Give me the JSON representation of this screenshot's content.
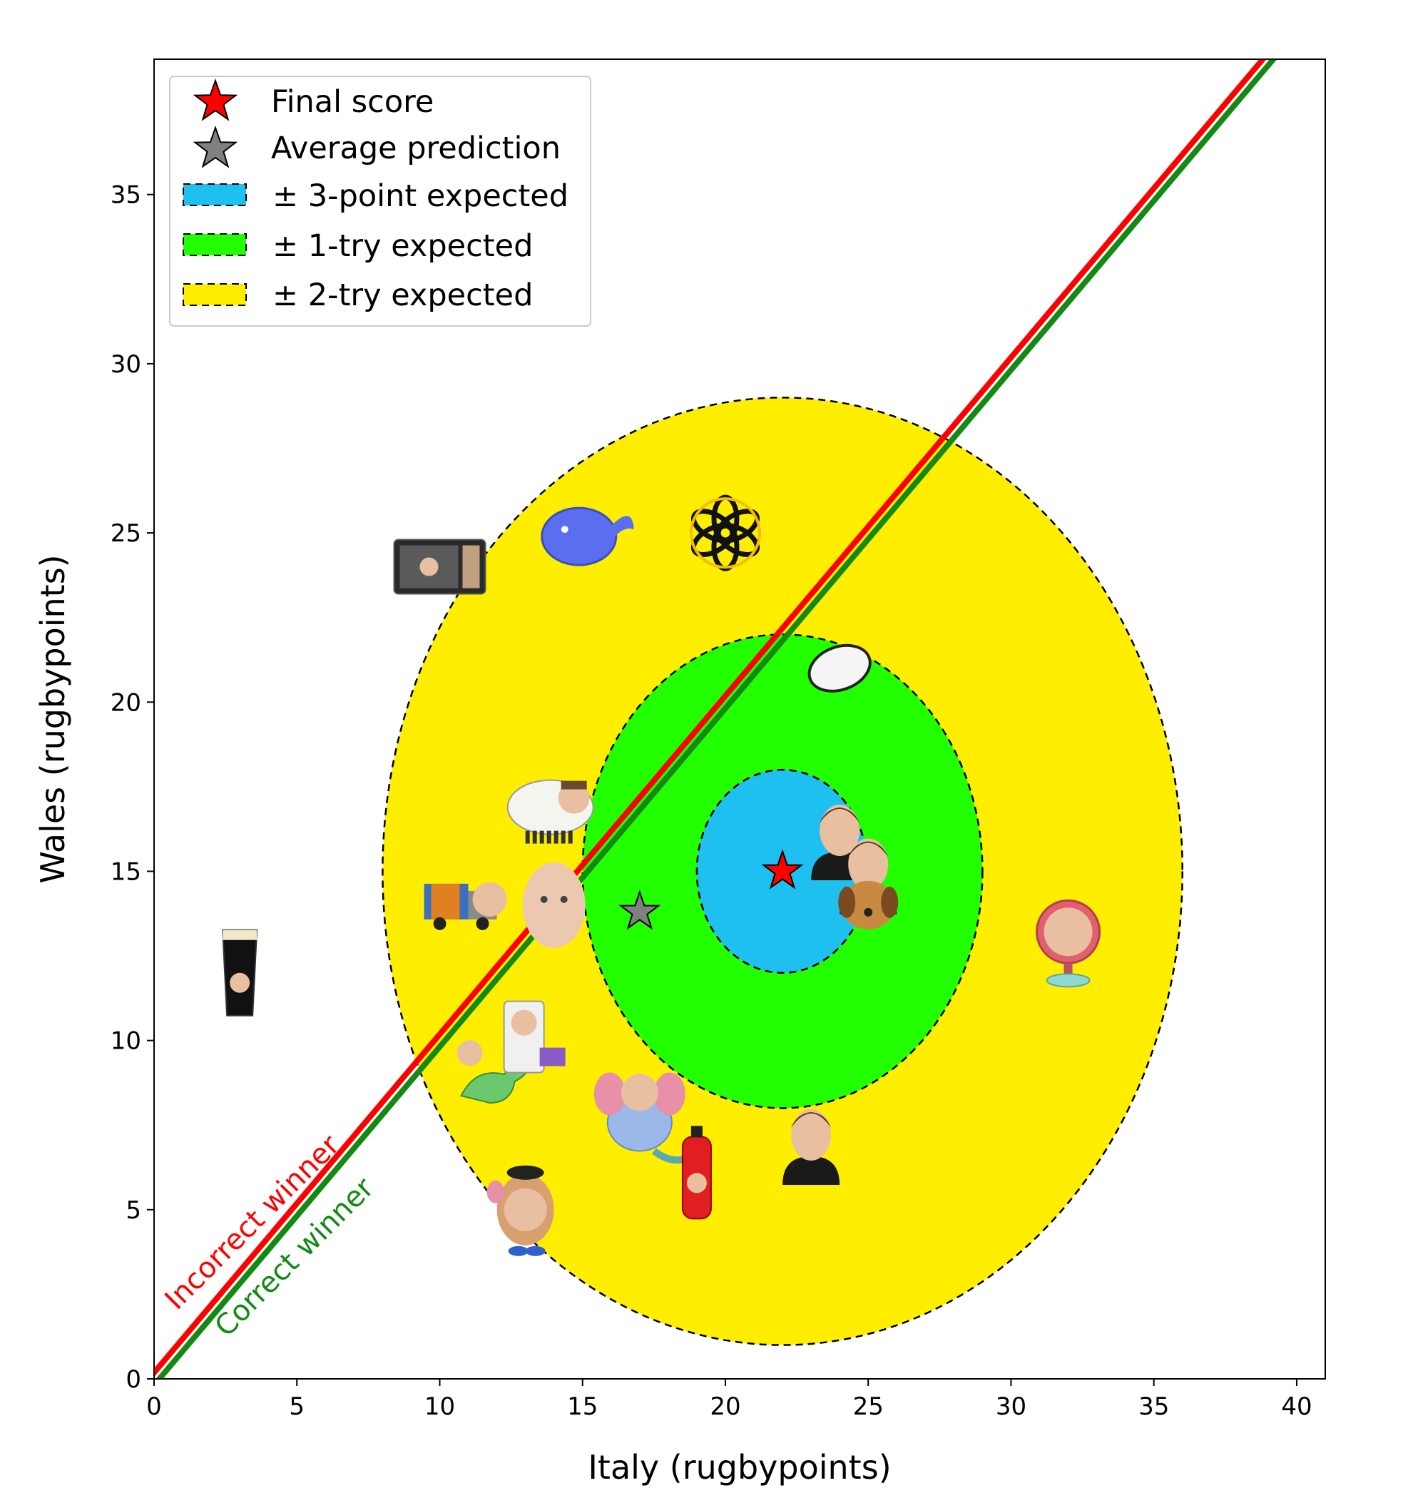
{
  "chart_data": {
    "type": "scatter",
    "xlabel": "Italy (rugbypoints)",
    "ylabel": "Wales (rugbypoints)",
    "xlim": [
      0,
      41
    ],
    "ylim": [
      0,
      39
    ],
    "xticks": [
      0,
      5,
      10,
      15,
      20,
      25,
      30,
      35,
      40
    ],
    "yticks": [
      0,
      5,
      10,
      15,
      20,
      25,
      30,
      35
    ],
    "grid": false,
    "legend_position": "top-left",
    "final_score": {
      "x": 22,
      "y": 15
    },
    "average_prediction": {
      "x": 17,
      "y": 13.8
    },
    "regions": [
      {
        "name": "± 2-try expected",
        "center": [
          22,
          15
        ],
        "half_width": 14,
        "half_height": 14,
        "color": "#ffee00"
      },
      {
        "name": "± 1-try expected",
        "center": [
          22,
          15
        ],
        "half_width": 7,
        "half_height": 7,
        "color": "#22ff00"
      },
      {
        "name": "± 3-point expected",
        "center": [
          22,
          15
        ],
        "half_width": 3,
        "half_height": 3,
        "color": "#1ec0f0"
      }
    ],
    "lines": [
      {
        "label": "Incorrect winner",
        "color": "#ff0000"
      },
      {
        "label": "Correct winner",
        "color": "#138a13"
      }
    ],
    "legend": [
      {
        "label": "Final score",
        "marker": "star",
        "color": "#ff0000"
      },
      {
        "label": "Average prediction",
        "marker": "star",
        "color": "#808080"
      },
      {
        "label": "± 3-point expected",
        "marker": "patch",
        "color": "#1ec0f0"
      },
      {
        "label": "± 1-try expected",
        "marker": "patch",
        "color": "#22ff00"
      },
      {
        "label": "± 2-try expected",
        "marker": "patch",
        "color": "#ffee00"
      }
    ],
    "predictions": [
      {
        "icon": "pint-glass-icon",
        "x": 3,
        "y": 12
      },
      {
        "icon": "microwave-icon",
        "x": 10,
        "y": 24
      },
      {
        "icon": "whale-icon",
        "x": 15,
        "y": 25
      },
      {
        "icon": "openai-logo-icon",
        "x": 20,
        "y": 25
      },
      {
        "icon": "rugby-ball-icon",
        "x": 24,
        "y": 21
      },
      {
        "icon": "sheep-icon",
        "x": 14,
        "y": 17
      },
      {
        "icon": "truck-icon",
        "x": 11,
        "y": 14
      },
      {
        "icon": "baby-face-icon",
        "x": 14,
        "y": 14
      },
      {
        "icon": "person-icon",
        "x": 24,
        "y": 16
      },
      {
        "icon": "person-icon",
        "x": 25,
        "y": 15
      },
      {
        "icon": "dog-icon",
        "x": 25,
        "y": 14
      },
      {
        "icon": "mirror-icon",
        "x": 32,
        "y": 13
      },
      {
        "icon": "dinosaur-icon",
        "x": 12,
        "y": 9
      },
      {
        "icon": "computer-tower-icon",
        "x": 13,
        "y": 10
      },
      {
        "icon": "elephant-icon",
        "x": 17,
        "y": 8
      },
      {
        "icon": "fire-extinguisher-icon",
        "x": 19,
        "y": 6
      },
      {
        "icon": "person-icon",
        "x": 23,
        "y": 7
      },
      {
        "icon": "potato-head-icon",
        "x": 13,
        "y": 5
      }
    ]
  }
}
